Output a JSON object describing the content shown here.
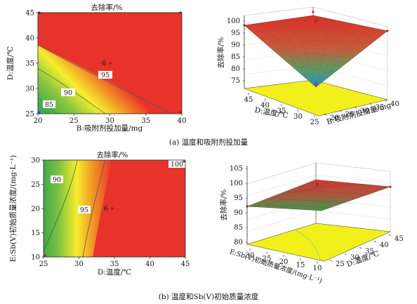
{
  "chart_data": [
    {
      "id": "a-contour",
      "type": "contour",
      "title": "去除率/%",
      "xlabel": "B:吸附剂投加量/mg",
      "ylabel": "D:温度/℃",
      "x_ticks": [
        "20",
        "25",
        "30",
        "35",
        "40"
      ],
      "y_ticks": [
        "25",
        "30",
        "35",
        "40",
        "45"
      ],
      "xlim": [
        20,
        40
      ],
      "ylim": [
        25,
        45
      ],
      "contour_levels": [
        "85",
        "90",
        "95"
      ],
      "design_point_label": "6"
    },
    {
      "id": "a-surface",
      "type": "surface3d",
      "zlabel": "去除率/%",
      "xlabel": "B:吸附剂投加量/mg",
      "ylabel": "D:温度/℃",
      "z_ticks": [
        "75",
        "80",
        "85",
        "90",
        "95",
        "100"
      ],
      "x_ticks": [
        "20",
        "25",
        "30",
        "35",
        "40"
      ],
      "y_ticks": [
        "25",
        "30",
        "35",
        "40",
        "45"
      ],
      "zlim": [
        75,
        100
      ]
    },
    {
      "id": "b-contour",
      "type": "contour",
      "title": "去除率/%",
      "xlabel": "D:温度/℃",
      "ylabel": "E:Sb(Ⅴ)初始质量浓度/(mg·L⁻¹)",
      "x_ticks": [
        "25",
        "30",
        "35",
        "40",
        "45"
      ],
      "y_ticks": [
        "10",
        "15",
        "20",
        "25",
        "30"
      ],
      "xlim": [
        25,
        45
      ],
      "ylim": [
        10,
        30
      ],
      "contour_levels": [
        "90",
        "95",
        "100"
      ],
      "design_point_label": "6"
    },
    {
      "id": "b-surface",
      "type": "surface3d",
      "zlabel": "去除率/%",
      "xlabel": "D:温度/℃",
      "ylabel": "E:Sb(Ⅴ)初始质量浓度/(mg·L⁻¹)",
      "z_ticks": [
        "80",
        "85",
        "90",
        "95",
        "100",
        "105"
      ],
      "x_ticks": [
        "25",
        "30",
        "35",
        "40",
        "45"
      ],
      "y_ticks": [
        "10",
        "15",
        "20",
        "25",
        "30"
      ],
      "zlim": [
        80,
        105
      ]
    }
  ],
  "captions": {
    "a": "(a) 温度和吸附剂投加量",
    "b": "(b) 温度和Sb(Ⅴ)初始质量浓度"
  },
  "colors": {
    "red": "#e8332a",
    "orange": "#f29526",
    "yellow": "#f5ee2c",
    "green": "#3faa4a",
    "cyan": "#38b5e8",
    "floor": "#f2f01a"
  }
}
